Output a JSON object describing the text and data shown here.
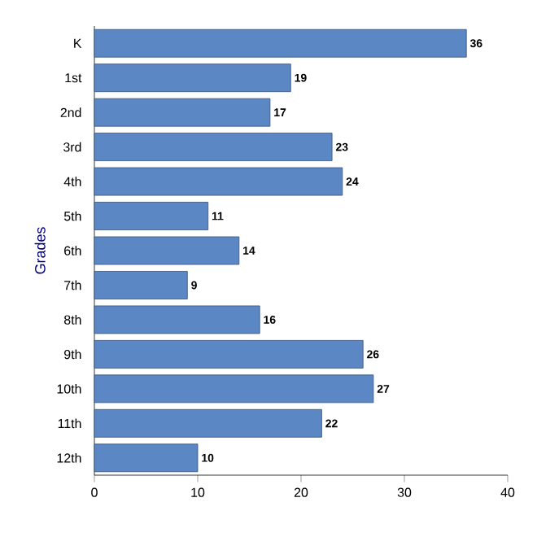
{
  "chart_data": {
    "type": "bar",
    "orientation": "horizontal",
    "ylabel": "Grades",
    "categories": [
      "K",
      "1st",
      "2nd",
      "3rd",
      "4th",
      "5th",
      "6th",
      "7th",
      "8th",
      "9th",
      "10th",
      "11th",
      "12th"
    ],
    "values": [
      36,
      19,
      17,
      23,
      24,
      11,
      14,
      9,
      16,
      26,
      27,
      22,
      10
    ],
    "color": "#5b87c5",
    "xlim": [
      0,
      40
    ],
    "xticks": [
      0,
      10,
      20,
      30,
      40
    ],
    "data_labels": true
  }
}
